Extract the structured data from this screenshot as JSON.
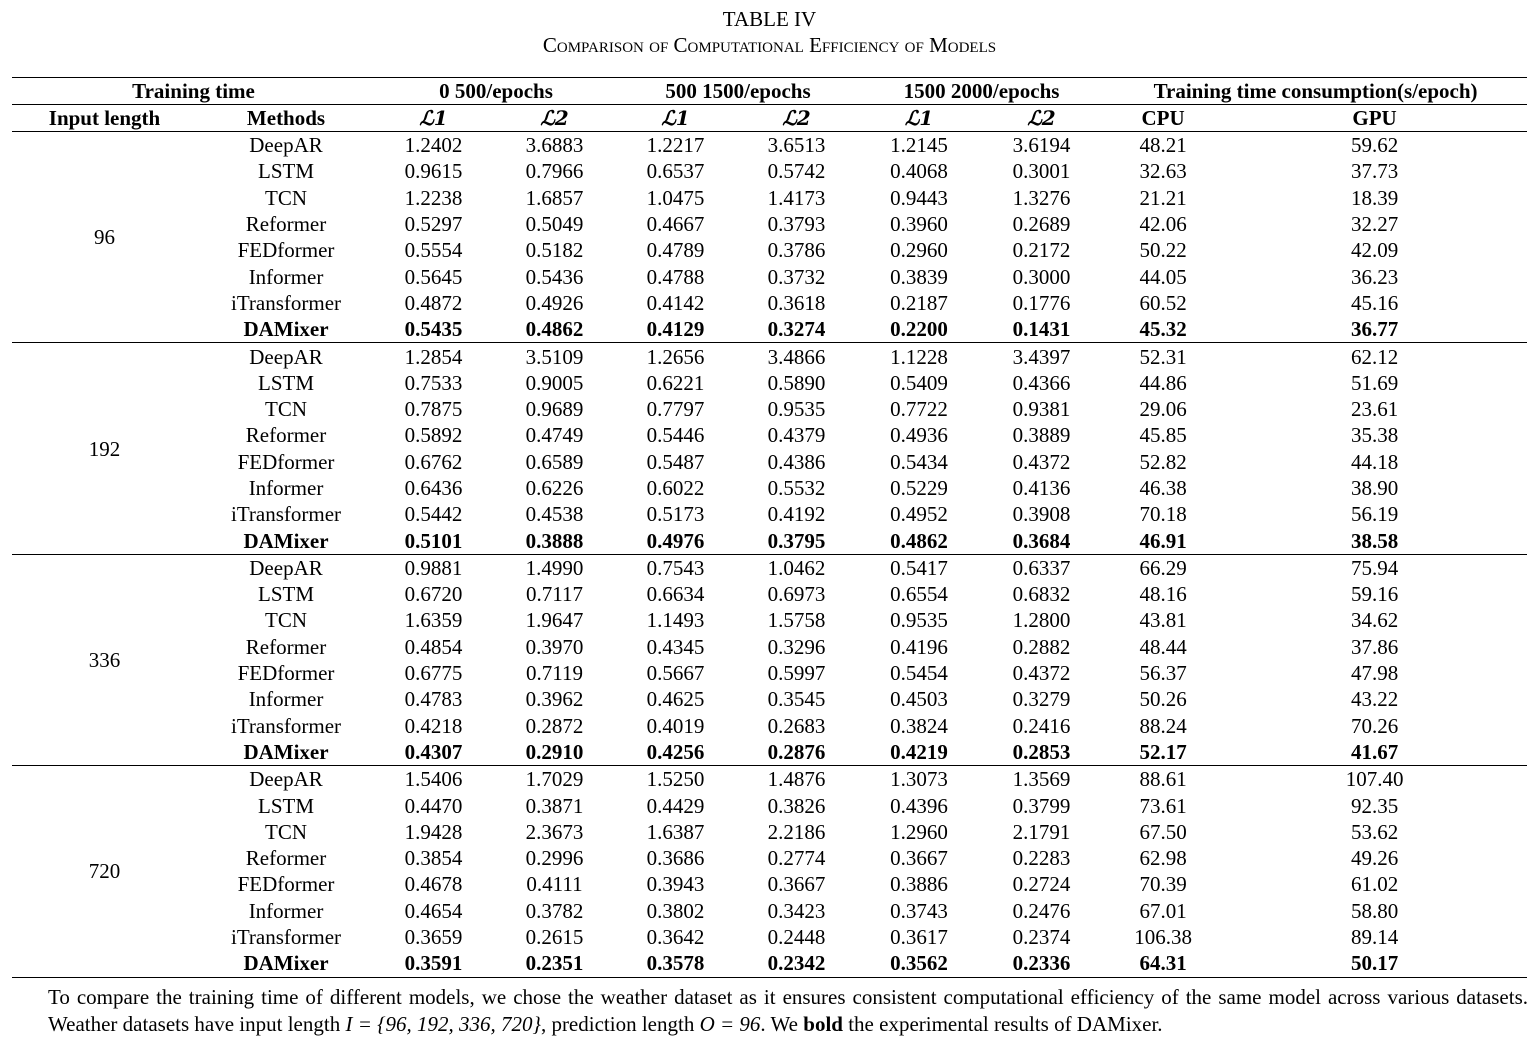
{
  "caption": {
    "label": "TABLE IV",
    "title": "Comparison of Computational Efficiency of Models"
  },
  "header": {
    "training_time": "Training time",
    "group1": "0 500/epochs",
    "group2": "500 1500/epochs",
    "group3": "1500 2000/epochs",
    "consumption": "Training time consumption(s/epoch)",
    "input_length": "Input length",
    "methods": "Methods",
    "l1": "ℒ1",
    "l2": "ℒ2",
    "cpu": "CPU",
    "gpu": "GPU"
  },
  "groups": [
    {
      "input_length": "96",
      "rows": [
        {
          "method": "DeepAR",
          "v": [
            "1.2402",
            "3.6883",
            "1.2217",
            "3.6513",
            "1.2145",
            "3.6194",
            "48.21",
            "59.62"
          ]
        },
        {
          "method": "LSTM",
          "v": [
            "0.9615",
            "0.7966",
            "0.6537",
            "0.5742",
            "0.4068",
            "0.3001",
            "32.63",
            "37.73"
          ]
        },
        {
          "method": "TCN",
          "v": [
            "1.2238",
            "1.6857",
            "1.0475",
            "1.4173",
            "0.9443",
            "1.3276",
            "21.21",
            "18.39"
          ]
        },
        {
          "method": "Reformer",
          "v": [
            "0.5297",
            "0.5049",
            "0.4667",
            "0.3793",
            "0.3960",
            "0.2689",
            "42.06",
            "32.27"
          ]
        },
        {
          "method": "FEDformer",
          "v": [
            "0.5554",
            "0.5182",
            "0.4789",
            "0.3786",
            "0.2960",
            "0.2172",
            "50.22",
            "42.09"
          ]
        },
        {
          "method": "Informer",
          "v": [
            "0.5645",
            "0.5436",
            "0.4788",
            "0.3732",
            "0.3839",
            "0.3000",
            "44.05",
            "36.23"
          ]
        },
        {
          "method": "iTransformer",
          "v": [
            "0.4872",
            "0.4926",
            "0.4142",
            "0.3618",
            "0.2187",
            "0.1776",
            "60.52",
            "45.16"
          ]
        },
        {
          "method": "DAMixer",
          "v": [
            "0.5435",
            "0.4862",
            "0.4129",
            "0.3274",
            "0.2200",
            "0.1431",
            "45.32",
            "36.77"
          ]
        }
      ]
    },
    {
      "input_length": "192",
      "rows": [
        {
          "method": "DeepAR",
          "v": [
            "1.2854",
            "3.5109",
            "1.2656",
            "3.4866",
            "1.1228",
            "3.4397",
            "52.31",
            "62.12"
          ]
        },
        {
          "method": "LSTM",
          "v": [
            "0.7533",
            "0.9005",
            "0.6221",
            "0.5890",
            "0.5409",
            "0.4366",
            "44.86",
            "51.69"
          ]
        },
        {
          "method": "TCN",
          "v": [
            "0.7875",
            "0.9689",
            "0.7797",
            "0.9535",
            "0.7722",
            "0.9381",
            "29.06",
            "23.61"
          ]
        },
        {
          "method": "Reformer",
          "v": [
            "0.5892",
            "0.4749",
            "0.5446",
            "0.4379",
            "0.4936",
            "0.3889",
            "45.85",
            "35.38"
          ]
        },
        {
          "method": "FEDformer",
          "v": [
            "0.6762",
            "0.6589",
            "0.5487",
            "0.4386",
            "0.5434",
            "0.4372",
            "52.82",
            "44.18"
          ]
        },
        {
          "method": "Informer",
          "v": [
            "0.6436",
            "0.6226",
            "0.6022",
            "0.5532",
            "0.5229",
            "0.4136",
            "46.38",
            "38.90"
          ]
        },
        {
          "method": "iTransformer",
          "v": [
            "0.5442",
            "0.4538",
            "0.5173",
            "0.4192",
            "0.4952",
            "0.3908",
            "70.18",
            "56.19"
          ]
        },
        {
          "method": "DAMixer",
          "v": [
            "0.5101",
            "0.3888",
            "0.4976",
            "0.3795",
            "0.4862",
            "0.3684",
            "46.91",
            "38.58"
          ]
        }
      ]
    },
    {
      "input_length": "336",
      "rows": [
        {
          "method": "DeepAR",
          "v": [
            "0.9881",
            "1.4990",
            "0.7543",
            "1.0462",
            "0.5417",
            "0.6337",
            "66.29",
            "75.94"
          ]
        },
        {
          "method": "LSTM",
          "v": [
            "0.6720",
            "0.7117",
            "0.6634",
            "0.6973",
            "0.6554",
            "0.6832",
            "48.16",
            "59.16"
          ]
        },
        {
          "method": "TCN",
          "v": [
            "1.6359",
            "1.9647",
            "1.1493",
            "1.5758",
            "0.9535",
            "1.2800",
            "43.81",
            "34.62"
          ]
        },
        {
          "method": "Reformer",
          "v": [
            "0.4854",
            "0.3970",
            "0.4345",
            "0.3296",
            "0.4196",
            "0.2882",
            "48.44",
            "37.86"
          ]
        },
        {
          "method": "FEDformer",
          "v": [
            "0.6775",
            "0.7119",
            "0.5667",
            "0.5997",
            "0.5454",
            "0.4372",
            "56.37",
            "47.98"
          ]
        },
        {
          "method": "Informer",
          "v": [
            "0.4783",
            "0.3962",
            "0.4625",
            "0.3545",
            "0.4503",
            "0.3279",
            "50.26",
            "43.22"
          ]
        },
        {
          "method": "iTransformer",
          "v": [
            "0.4218",
            "0.2872",
            "0.4019",
            "0.2683",
            "0.3824",
            "0.2416",
            "88.24",
            "70.26"
          ]
        },
        {
          "method": "DAMixer",
          "v": [
            "0.4307",
            "0.2910",
            "0.4256",
            "0.2876",
            "0.4219",
            "0.2853",
            "52.17",
            "41.67"
          ]
        }
      ]
    },
    {
      "input_length": "720",
      "rows": [
        {
          "method": "DeepAR",
          "v": [
            "1.5406",
            "1.7029",
            "1.5250",
            "1.4876",
            "1.3073",
            "1.3569",
            "88.61",
            "107.40"
          ]
        },
        {
          "method": "LSTM",
          "v": [
            "0.4470",
            "0.3871",
            "0.4429",
            "0.3826",
            "0.4396",
            "0.3799",
            "73.61",
            "92.35"
          ]
        },
        {
          "method": "TCN",
          "v": [
            "1.9428",
            "2.3673",
            "1.6387",
            "2.2186",
            "1.2960",
            "2.1791",
            "67.50",
            "53.62"
          ]
        },
        {
          "method": "Reformer",
          "v": [
            "0.3854",
            "0.2996",
            "0.3686",
            "0.2774",
            "0.3667",
            "0.2283",
            "62.98",
            "49.26"
          ]
        },
        {
          "method": "FEDformer",
          "v": [
            "0.4678",
            "0.4111",
            "0.3943",
            "0.3667",
            "0.3886",
            "0.2724",
            "70.39",
            "61.02"
          ]
        },
        {
          "method": "Informer",
          "v": [
            "0.4654",
            "0.3782",
            "0.3802",
            "0.3423",
            "0.3743",
            "0.2476",
            "67.01",
            "58.80"
          ]
        },
        {
          "method": "iTransformer",
          "v": [
            "0.3659",
            "0.2615",
            "0.3642",
            "0.2448",
            "0.3617",
            "0.2374",
            "106.38",
            "89.14"
          ]
        },
        {
          "method": "DAMixer",
          "v": [
            "0.3591",
            "0.2351",
            "0.3578",
            "0.2342",
            "0.3562",
            "0.2336",
            "64.31",
            "50.17"
          ]
        }
      ]
    }
  ],
  "note": {
    "line1": "To compare the training time of different models, we chose the weather dataset as it ensures consistent computational efficiency of the same model across",
    "line2_a": "various datasets. Weather datasets have input length ",
    "line2_math1": "I = {96, 192, 336, 720}",
    "line2_b": ", prediction length ",
    "line2_math2": "O = 96",
    "line2_c": ". We ",
    "line2_bold": "bold",
    "line2_d": " the experimental results of DAMixer."
  }
}
